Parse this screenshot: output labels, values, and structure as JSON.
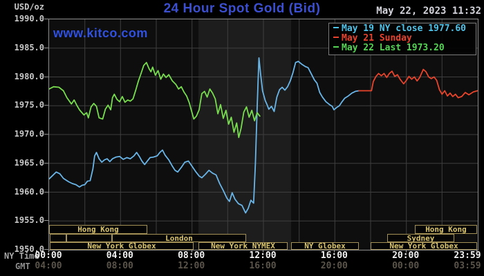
{
  "header": {
    "unit_label": "USD/oz",
    "title": "24 Hour Spot Gold (Bid)",
    "datetime": "May 22, 2023 11:32",
    "watermark": "www.kitco.com"
  },
  "colors": {
    "background": "#000000",
    "plot_background": "#0e0e0e",
    "nymex_band": "#1d1d1d",
    "grid": "#3f3f3f",
    "plot_border": "#8c8c8c",
    "title_blue": "#3c4fd0",
    "watermark_blue": "#3050e0",
    "session_border": "#a39155",
    "session_text": "#d8c46e",
    "axis_text": "#c8c8c8",
    "ny_tick_text": "#f2f2f2",
    "gmt_tick_text": "#5a544a"
  },
  "legend": [
    {
      "label": "May 19 NY close 1977.60",
      "color": "#4fc4ea"
    },
    {
      "label": "May 21 Sunday",
      "color": "#e8432e"
    },
    {
      "label": "May 22 Last 1973.20",
      "color": "#55d455"
    }
  ],
  "y_axis": {
    "labels": [
      "1990.0",
      "1985.0",
      "1980.0",
      "1975.0",
      "1970.0",
      "1965.0",
      "1960.0",
      "1955.0",
      "1950.0"
    ]
  },
  "x_axis": {
    "ny_label": "NY Time",
    "gmt_label": "GMT",
    "ny_ticks": [
      {
        "h": 0,
        "label": "00:00"
      },
      {
        "h": 4,
        "label": "04:00"
      },
      {
        "h": 8,
        "label": "08:00"
      },
      {
        "h": 12,
        "label": "12:00"
      },
      {
        "h": 16,
        "label": "16:00"
      },
      {
        "h": 20,
        "label": "20:00"
      },
      {
        "h": 23.983,
        "label": "23:59"
      }
    ],
    "gmt_ticks": [
      {
        "h": 0,
        "label": "04:00"
      },
      {
        "h": 4,
        "label": "08:00"
      },
      {
        "h": 8,
        "label": "12:00"
      },
      {
        "h": 12,
        "label": "16:00"
      },
      {
        "h": 16,
        "label": "20:00"
      },
      {
        "h": 20,
        "label": "00:00"
      },
      {
        "h": 23.983,
        "label": "03:59"
      }
    ]
  },
  "sessions": {
    "rows": [
      {
        "boxes": [
          {
            "label": "Hong Kong",
            "start": 0.05,
            "end": 5.55
          },
          {
            "label": "Hong Kong",
            "start": 20.5,
            "end": 24
          }
        ]
      },
      {
        "boxes": [
          {
            "label": "",
            "start": 0.08,
            "end": 1.0
          },
          {
            "label": "",
            "start": 1.0,
            "end": 3.55
          },
          {
            "label": "London",
            "start": 3.55,
            "end": 11.07
          },
          {
            "label": "Sydney",
            "start": 18.95,
            "end": 22.7
          }
        ]
      },
      {
        "boxes": [
          {
            "label": "New York Globex",
            "start": 0.08,
            "end": 8.15
          },
          {
            "label": "New York NYMEX",
            "start": 8.4,
            "end": 13.4
          },
          {
            "label": "NY Globex",
            "start": 13.6,
            "end": 17.4
          },
          {
            "label": "New York Globex",
            "start": 18.05,
            "end": 24
          }
        ]
      }
    ]
  },
  "chart_data": {
    "type": "line",
    "title": "24 Hour Spot Gold (Bid)",
    "xlabel": "NY Time (hours)",
    "ylabel": "USD/oz",
    "x_range": [
      0,
      24
    ],
    "y_range": [
      1950,
      1990
    ],
    "y_tick_step": 5,
    "x_tick_step_hours": 4,
    "grid": true,
    "legend_position": "top-right",
    "nymex_floor_band_hours": [
      8.36,
      13.55
    ],
    "series": [
      {
        "name": "May 19 NY close 1977.60",
        "color": "#6ab5e8",
        "points": [
          [
            0.0,
            1962.3
          ],
          [
            0.2,
            1962.9
          ],
          [
            0.4,
            1963.5
          ],
          [
            0.6,
            1963.2
          ],
          [
            0.8,
            1962.4
          ],
          [
            0.95,
            1962.1
          ],
          [
            1.1,
            1961.8
          ],
          [
            1.3,
            1961.5
          ],
          [
            1.5,
            1961.3
          ],
          [
            1.7,
            1960.9
          ],
          [
            1.85,
            1961.2
          ],
          [
            2.0,
            1961.3
          ],
          [
            2.15,
            1961.9
          ],
          [
            2.3,
            1962.0
          ],
          [
            2.45,
            1964.0
          ],
          [
            2.55,
            1966.3
          ],
          [
            2.65,
            1966.9
          ],
          [
            2.8,
            1965.8
          ],
          [
            2.95,
            1965.2
          ],
          [
            3.1,
            1965.6
          ],
          [
            3.25,
            1965.8
          ],
          [
            3.4,
            1965.3
          ],
          [
            3.55,
            1965.8
          ],
          [
            3.75,
            1966.1
          ],
          [
            3.95,
            1966.2
          ],
          [
            4.15,
            1965.7
          ],
          [
            4.35,
            1966.0
          ],
          [
            4.55,
            1965.8
          ],
          [
            4.75,
            1966.3
          ],
          [
            4.9,
            1966.9
          ],
          [
            5.05,
            1966.2
          ],
          [
            5.2,
            1965.4
          ],
          [
            5.35,
            1964.8
          ],
          [
            5.5,
            1965.4
          ],
          [
            5.65,
            1966.0
          ],
          [
            5.85,
            1966.1
          ],
          [
            6.05,
            1966.3
          ],
          [
            6.2,
            1966.9
          ],
          [
            6.35,
            1967.3
          ],
          [
            6.5,
            1966.4
          ],
          [
            6.7,
            1965.6
          ],
          [
            6.9,
            1964.5
          ],
          [
            7.05,
            1963.8
          ],
          [
            7.2,
            1963.5
          ],
          [
            7.4,
            1964.3
          ],
          [
            7.6,
            1965.2
          ],
          [
            7.8,
            1965.4
          ],
          [
            8.0,
            1964.5
          ],
          [
            8.2,
            1963.6
          ],
          [
            8.4,
            1962.8
          ],
          [
            8.55,
            1962.5
          ],
          [
            8.75,
            1963.1
          ],
          [
            8.95,
            1963.8
          ],
          [
            9.15,
            1963.3
          ],
          [
            9.35,
            1963.0
          ],
          [
            9.55,
            1961.5
          ],
          [
            9.75,
            1960.3
          ],
          [
            9.95,
            1959.0
          ],
          [
            10.1,
            1958.4
          ],
          [
            10.25,
            1959.9
          ],
          [
            10.4,
            1958.8
          ],
          [
            10.6,
            1958.0
          ],
          [
            10.8,
            1957.7
          ],
          [
            11.0,
            1956.4
          ],
          [
            11.15,
            1957.2
          ],
          [
            11.3,
            1958.6
          ],
          [
            11.45,
            1958.1
          ],
          [
            11.55,
            1965.0
          ],
          [
            11.65,
            1975.0
          ],
          [
            11.75,
            1983.3
          ],
          [
            11.85,
            1980.3
          ],
          [
            11.95,
            1977.6
          ],
          [
            12.1,
            1975.9
          ],
          [
            12.2,
            1975.2
          ],
          [
            12.3,
            1974.4
          ],
          [
            12.45,
            1974.9
          ],
          [
            12.6,
            1974.0
          ],
          [
            12.75,
            1976.5
          ],
          [
            12.9,
            1977.8
          ],
          [
            13.05,
            1978.2
          ],
          [
            13.2,
            1977.7
          ],
          [
            13.35,
            1978.3
          ],
          [
            13.5,
            1979.3
          ],
          [
            13.65,
            1980.7
          ],
          [
            13.8,
            1982.5
          ],
          [
            13.95,
            1982.7
          ],
          [
            14.15,
            1982.2
          ],
          [
            14.35,
            1981.8
          ],
          [
            14.5,
            1981.6
          ],
          [
            14.65,
            1980.7
          ],
          [
            14.85,
            1979.5
          ],
          [
            15.0,
            1978.9
          ],
          [
            15.15,
            1977.3
          ],
          [
            15.3,
            1976.5
          ],
          [
            15.5,
            1975.7
          ],
          [
            15.7,
            1975.2
          ],
          [
            15.85,
            1974.9
          ],
          [
            15.95,
            1974.3
          ],
          [
            16.1,
            1974.7
          ],
          [
            16.25,
            1975.0
          ],
          [
            16.4,
            1975.7
          ],
          [
            16.55,
            1976.3
          ],
          [
            16.75,
            1976.7
          ],
          [
            16.95,
            1977.2
          ],
          [
            17.15,
            1977.5
          ],
          [
            17.35,
            1977.6
          ]
        ]
      },
      {
        "name": "May 21 Sunday",
        "color": "#e8442c",
        "points": [
          [
            17.35,
            1977.6
          ],
          [
            18.05,
            1977.6
          ],
          [
            18.15,
            1979.2
          ],
          [
            18.3,
            1980.1
          ],
          [
            18.45,
            1980.6
          ],
          [
            18.6,
            1980.2
          ],
          [
            18.75,
            1980.6
          ],
          [
            18.9,
            1979.9
          ],
          [
            19.05,
            1980.6
          ],
          [
            19.2,
            1981.0
          ],
          [
            19.35,
            1980.1
          ],
          [
            19.5,
            1980.4
          ],
          [
            19.65,
            1979.6
          ],
          [
            19.85,
            1978.8
          ],
          [
            20.0,
            1979.4
          ],
          [
            20.15,
            1980.1
          ],
          [
            20.3,
            1979.6
          ],
          [
            20.45,
            1980.0
          ],
          [
            20.6,
            1979.3
          ],
          [
            20.75,
            1979.9
          ],
          [
            20.95,
            1981.3
          ],
          [
            21.1,
            1980.9
          ],
          [
            21.25,
            1980.0
          ],
          [
            21.4,
            1979.7
          ],
          [
            21.55,
            1980.0
          ],
          [
            21.7,
            1979.4
          ],
          [
            21.85,
            1977.8
          ],
          [
            22.0,
            1977.0
          ],
          [
            22.15,
            1977.6
          ],
          [
            22.3,
            1976.7
          ],
          [
            22.45,
            1977.2
          ],
          [
            22.6,
            1976.6
          ],
          [
            22.75,
            1977.0
          ],
          [
            22.9,
            1976.4
          ],
          [
            23.1,
            1976.6
          ],
          [
            23.3,
            1977.3
          ],
          [
            23.5,
            1976.9
          ],
          [
            23.75,
            1977.4
          ],
          [
            23.98,
            1977.6
          ]
        ]
      },
      {
        "name": "May 22 Last 1973.20",
        "color": "#78dd4e",
        "points": [
          [
            0.0,
            1977.9
          ],
          [
            0.25,
            1978.3
          ],
          [
            0.55,
            1978.2
          ],
          [
            0.8,
            1977.6
          ],
          [
            1.0,
            1976.4
          ],
          [
            1.25,
            1975.3
          ],
          [
            1.4,
            1976.0
          ],
          [
            1.55,
            1975.1
          ],
          [
            1.7,
            1974.3
          ],
          [
            1.95,
            1973.4
          ],
          [
            2.1,
            1973.8
          ],
          [
            2.2,
            1972.9
          ],
          [
            2.35,
            1974.8
          ],
          [
            2.5,
            1975.4
          ],
          [
            2.65,
            1974.9
          ],
          [
            2.8,
            1972.9
          ],
          [
            3.0,
            1972.7
          ],
          [
            3.15,
            1974.4
          ],
          [
            3.3,
            1975.1
          ],
          [
            3.45,
            1974.3
          ],
          [
            3.55,
            1976.4
          ],
          [
            3.65,
            1977.0
          ],
          [
            3.8,
            1976.1
          ],
          [
            3.95,
            1975.7
          ],
          [
            4.1,
            1976.6
          ],
          [
            4.25,
            1975.6
          ],
          [
            4.4,
            1976.0
          ],
          [
            4.55,
            1975.8
          ],
          [
            4.7,
            1976.2
          ],
          [
            4.85,
            1977.7
          ],
          [
            5.0,
            1979.3
          ],
          [
            5.15,
            1980.6
          ],
          [
            5.3,
            1982.0
          ],
          [
            5.45,
            1982.5
          ],
          [
            5.6,
            1981.4
          ],
          [
            5.7,
            1980.9
          ],
          [
            5.8,
            1981.7
          ],
          [
            5.95,
            1980.3
          ],
          [
            6.1,
            1981.1
          ],
          [
            6.25,
            1979.6
          ],
          [
            6.4,
            1980.5
          ],
          [
            6.55,
            1979.9
          ],
          [
            6.7,
            1980.4
          ],
          [
            6.9,
            1979.3
          ],
          [
            7.1,
            1978.7
          ],
          [
            7.25,
            1977.9
          ],
          [
            7.4,
            1978.3
          ],
          [
            7.55,
            1977.4
          ],
          [
            7.7,
            1976.7
          ],
          [
            7.85,
            1975.5
          ],
          [
            8.0,
            1973.8
          ],
          [
            8.1,
            1972.7
          ],
          [
            8.25,
            1973.2
          ],
          [
            8.4,
            1974.3
          ],
          [
            8.55,
            1977.1
          ],
          [
            8.7,
            1977.5
          ],
          [
            8.85,
            1976.5
          ],
          [
            9.0,
            1977.9
          ],
          [
            9.15,
            1977.2
          ],
          [
            9.3,
            1976.2
          ],
          [
            9.45,
            1973.6
          ],
          [
            9.6,
            1975.2
          ],
          [
            9.75,
            1972.8
          ],
          [
            9.9,
            1974.2
          ],
          [
            10.05,
            1971.8
          ],
          [
            10.2,
            1973.0
          ],
          [
            10.35,
            1970.4
          ],
          [
            10.5,
            1972.0
          ],
          [
            10.62,
            1969.5
          ],
          [
            10.75,
            1971.1
          ],
          [
            10.9,
            1973.9
          ],
          [
            11.05,
            1974.8
          ],
          [
            11.2,
            1973.0
          ],
          [
            11.35,
            1974.2
          ],
          [
            11.5,
            1972.4
          ],
          [
            11.65,
            1973.8
          ],
          [
            11.8,
            1973.2
          ]
        ]
      }
    ]
  }
}
